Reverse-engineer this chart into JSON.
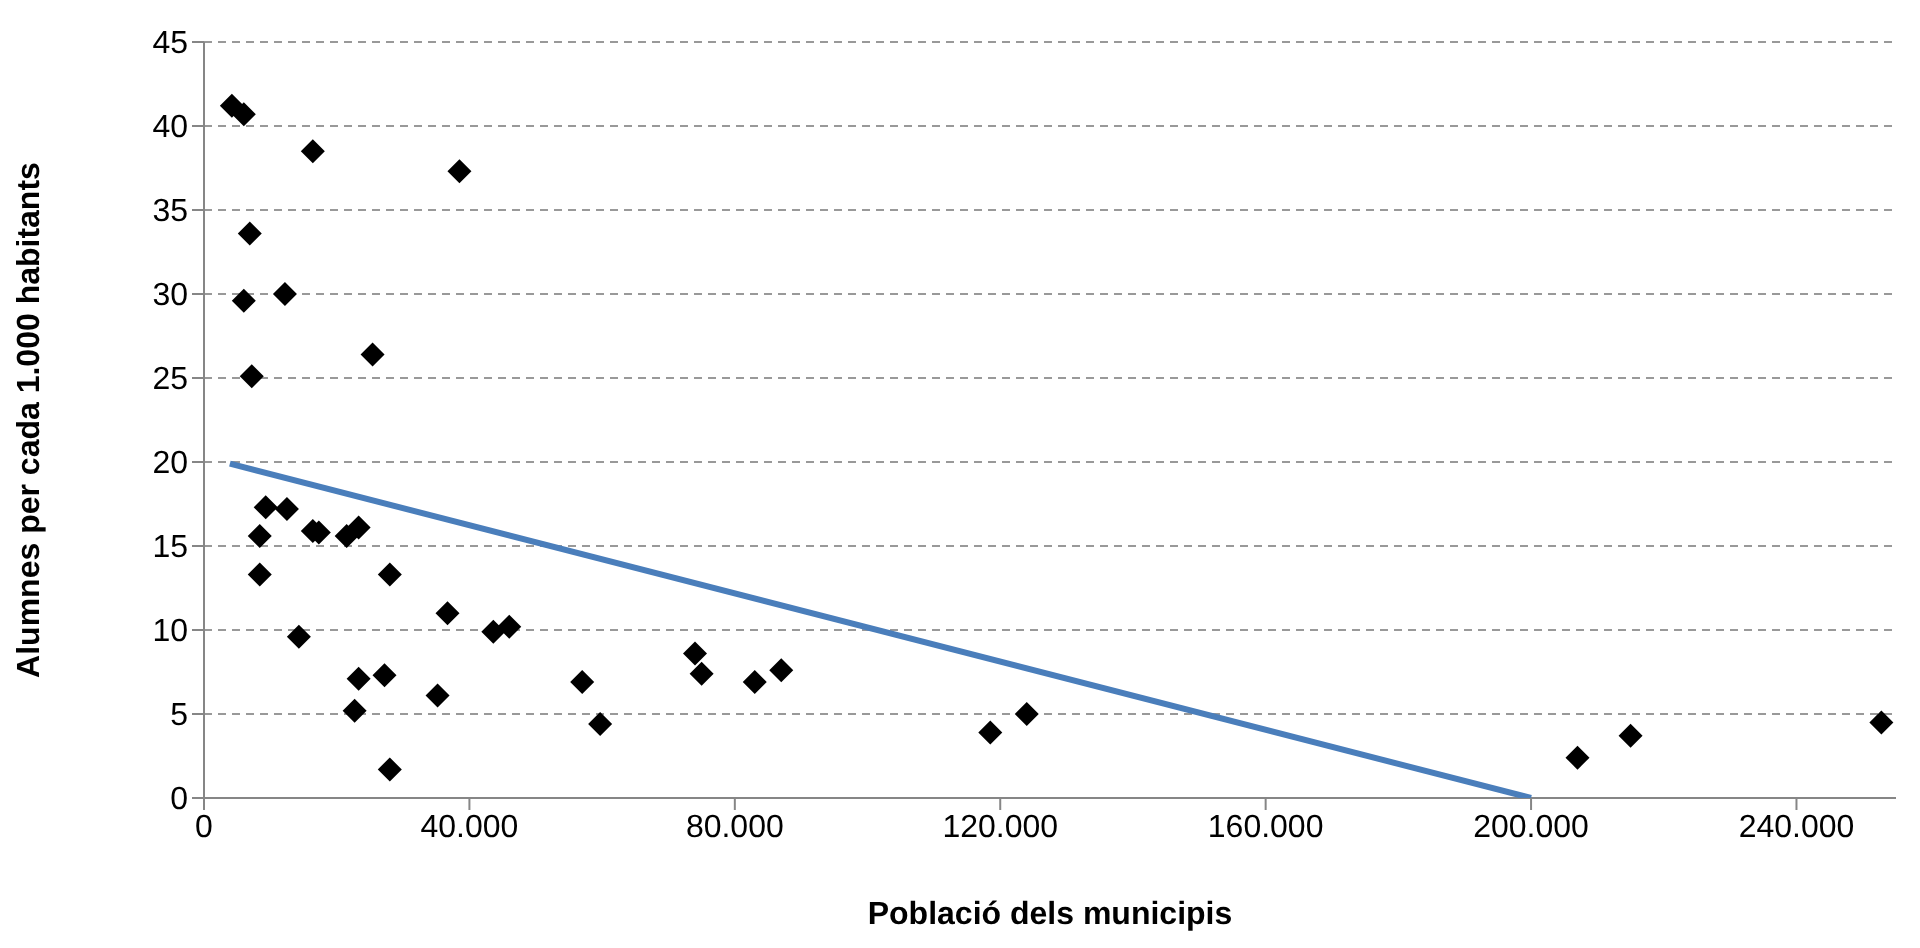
{
  "chart_data": {
    "type": "scatter",
    "xlabel": "Població dels municipis",
    "ylabel": "Alumnes per cada 1.000 habitants",
    "xlim": [
      0,
      255000
    ],
    "xticks": [
      0,
      {
        "value": 40000,
        "label": "40.000"
      },
      {
        "value": 80000,
        "label": "80.000"
      },
      {
        "value": 120000,
        "label": "120.000"
      },
      {
        "value": 160000,
        "label": "160.000"
      },
      {
        "value": 200000,
        "label": "200.000"
      },
      {
        "value": 240000,
        "label": "240.000"
      }
    ],
    "ylim": [
      0,
      45
    ],
    "yticks": [
      0,
      5,
      10,
      15,
      20,
      25,
      30,
      35,
      40,
      45
    ],
    "grid": "y",
    "legend": false,
    "series": [
      {
        "type": "scatter",
        "color": "#000000",
        "marker": "diamond",
        "x": [
          4200,
          6000,
          16400,
          38500,
          6900,
          6000,
          12200,
          25400,
          7200,
          9300,
          12500,
          8400,
          16400,
          17300,
          21500,
          23300,
          8400,
          28000,
          14300,
          36700,
          43600,
          46000,
          23300,
          27200,
          22700,
          35200,
          28000,
          57000,
          59700,
          74000,
          75000,
          83000,
          87000,
          118500,
          124000,
          207000,
          215000,
          252800
        ],
        "values": [
          41.2,
          40.7,
          38.5,
          37.3,
          33.6,
          29.6,
          30.0,
          26.4,
          25.1,
          17.3,
          17.2,
          15.6,
          15.9,
          15.8,
          15.6,
          16.1,
          13.3,
          13.3,
          9.6,
          11.0,
          9.9,
          10.2,
          7.1,
          7.3,
          5.2,
          6.1,
          1.7,
          6.9,
          4.4,
          8.6,
          7.4,
          6.9,
          7.6,
          3.9,
          5.0,
          2.4,
          3.7,
          4.5
        ]
      },
      {
        "type": "line",
        "color": "#4a7ebb",
        "line_style": "solid",
        "marker": "none",
        "x": [
          3900,
          200000
        ],
        "values": [
          19.9,
          0
        ]
      }
    ]
  }
}
